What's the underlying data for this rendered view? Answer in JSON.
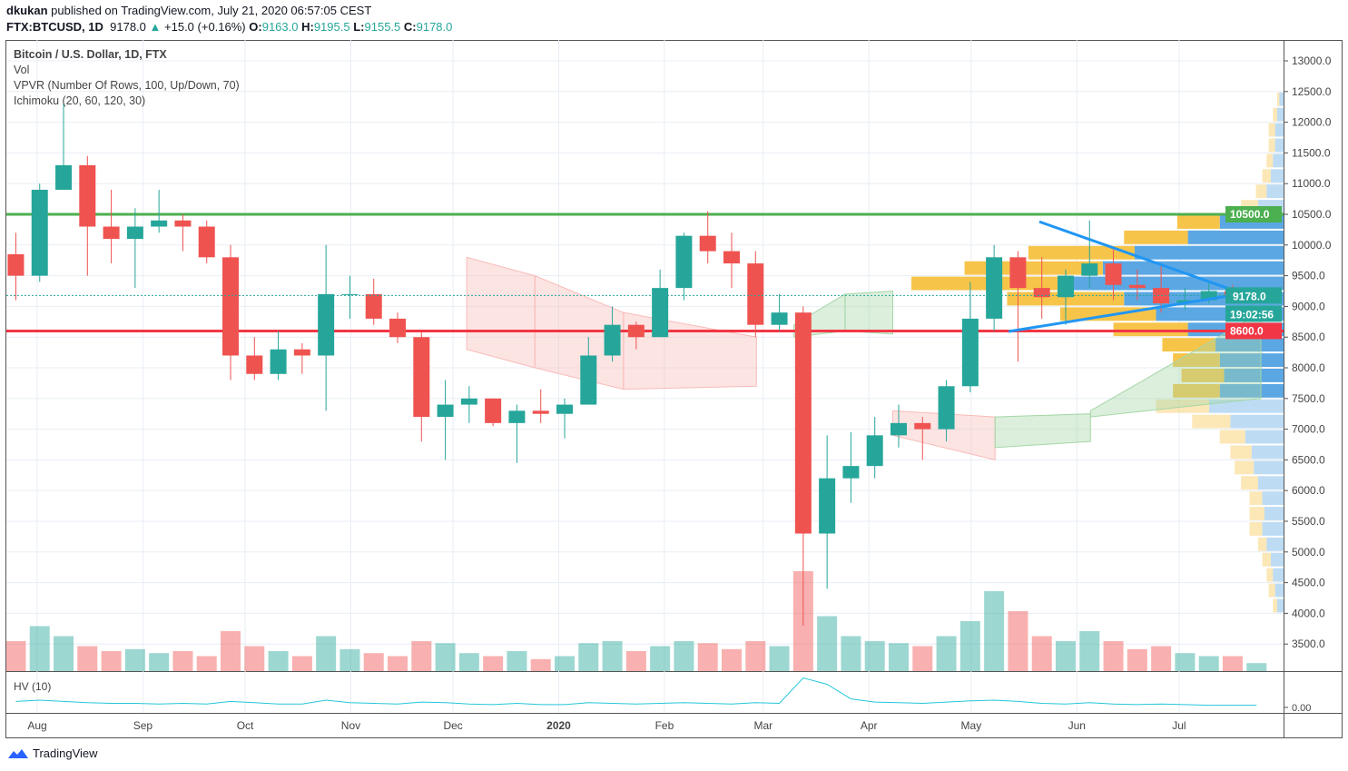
{
  "header": {
    "author": "dkukan",
    "published": "published on TradingView.com, July 21, 2020 06:57:05 CEST",
    "symbol": "FTX:BTCUSD, 1D",
    "last": "9178.0",
    "change": "+15.0 (+0.16%)",
    "o_label": "O:",
    "o": "9163.0",
    "h_label": "H:",
    "h": "9195.5",
    "l_label": "L:",
    "l": "9155.5",
    "c_label": "C:",
    "c": "9178.0"
  },
  "legend": [
    "Bitcoin / U.S. Dollar, 1D, FTX",
    "Vol",
    "VPVR (Number Of Rows, 100, Up/Down, 70)",
    "Ichimoku (20, 60, 120, 30)"
  ],
  "hv_label": "HV (10)",
  "footer": {
    "brand": "TradingView"
  },
  "colors": {
    "up": "#26a69a",
    "down": "#ef5350",
    "resistance": "#4caf50",
    "support": "#f23645",
    "trendline": "#2196f3",
    "vpvr_up": "#5aa7e3",
    "vpvr_down": "#f7c44a",
    "cloud_bull": "#a5d6a7",
    "cloud_bear": "#f8bbb8"
  },
  "chart_data": {
    "type": "candlestick",
    "ylim": [
      3100,
      13300
    ],
    "y_ticks": [
      "3500.0",
      "4000.0",
      "4500.0",
      "5000.0",
      "5500.0",
      "6000.0",
      "6500.0",
      "7000.0",
      "7500.0",
      "8000.0",
      "8500.0",
      "9000.0",
      "9500.0",
      "10000.0",
      "10500.0",
      "11000.0",
      "11500.0",
      "12000.0",
      "12500.0",
      "13000.0"
    ],
    "x_ticks": [
      {
        "date": "2019-08-01",
        "label": "Aug"
      },
      {
        "date": "2019-09-01",
        "label": "Sep"
      },
      {
        "date": "2019-10-01",
        "label": "Oct"
      },
      {
        "date": "2019-11-01",
        "label": "Nov"
      },
      {
        "date": "2019-12-01",
        "label": "Dec"
      },
      {
        "date": "2020-01-01",
        "label": "2020"
      },
      {
        "date": "2020-02-01",
        "label": "Feb"
      },
      {
        "date": "2020-03-01",
        "label": "Mar"
      },
      {
        "date": "2020-04-01",
        "label": "Apr"
      },
      {
        "date": "2020-05-01",
        "label": "May"
      },
      {
        "date": "2020-06-01",
        "label": "Jun"
      },
      {
        "date": "2020-07-01",
        "label": "Jul"
      }
    ],
    "candles": [
      [
        "2019-07-22",
        9850,
        10200,
        9100,
        9500
      ],
      [
        "2019-07-29",
        9500,
        11000,
        9400,
        10900
      ],
      [
        "2019-08-05",
        10900,
        12300,
        10900,
        11300
      ],
      [
        "2019-08-12",
        11300,
        11450,
        9500,
        10300
      ],
      [
        "2019-08-19",
        10300,
        10900,
        9700,
        10100
      ],
      [
        "2019-08-26",
        10100,
        10600,
        9300,
        10300
      ],
      [
        "2019-09-02",
        10300,
        10900,
        10200,
        10400
      ],
      [
        "2019-09-09",
        10400,
        10500,
        9900,
        10300
      ],
      [
        "2019-09-16",
        10300,
        10400,
        9700,
        9800
      ],
      [
        "2019-09-23",
        9800,
        10000,
        7800,
        8200
      ],
      [
        "2019-09-30",
        8200,
        8500,
        7800,
        7900
      ],
      [
        "2019-10-07",
        7900,
        8600,
        7800,
        8300
      ],
      [
        "2019-10-14",
        8300,
        8400,
        7900,
        8200
      ],
      [
        "2019-10-21",
        8200,
        10000,
        7300,
        9200
      ],
      [
        "2019-10-28",
        9200,
        9500,
        8800,
        9200
      ],
      [
        "2019-11-04",
        9200,
        9450,
        8700,
        8800
      ],
      [
        "2019-11-11",
        8800,
        8900,
        8400,
        8500
      ],
      [
        "2019-11-18",
        8500,
        8600,
        6800,
        7200
      ],
      [
        "2019-11-25",
        7200,
        7800,
        6500,
        7400
      ],
      [
        "2019-12-02",
        7400,
        7700,
        7100,
        7500
      ],
      [
        "2019-12-09",
        7500,
        7500,
        7050,
        7100
      ],
      [
        "2019-12-16",
        7100,
        7400,
        6450,
        7300
      ],
      [
        "2019-12-23",
        7300,
        7650,
        7100,
        7250
      ],
      [
        "2019-12-30",
        7250,
        7500,
        6850,
        7400
      ],
      [
        "2020-01-06",
        7400,
        8500,
        7400,
        8200
      ],
      [
        "2020-01-13",
        8200,
        9000,
        8100,
        8700
      ],
      [
        "2020-01-20",
        8700,
        8750,
        8300,
        8500
      ],
      [
        "2020-01-27",
        8500,
        9600,
        8500,
        9300
      ],
      [
        "2020-02-03",
        9300,
        10200,
        9100,
        10150
      ],
      [
        "2020-02-10",
        10150,
        10550,
        9700,
        9900
      ],
      [
        "2020-02-17",
        9900,
        10200,
        9300,
        9700
      ],
      [
        "2020-02-24",
        9700,
        9900,
        8500,
        8700
      ],
      [
        "2020-03-02",
        8700,
        9200,
        8600,
        8900
      ],
      [
        "2020-03-09",
        8900,
        9000,
        3800,
        5300
      ],
      [
        "2020-03-16",
        5300,
        6900,
        4400,
        6200
      ],
      [
        "2020-03-23",
        6200,
        6950,
        5800,
        6400
      ],
      [
        "2020-03-30",
        6400,
        7200,
        6200,
        6900
      ],
      [
        "2020-04-06",
        6900,
        7400,
        6700,
        7100
      ],
      [
        "2020-04-13",
        7100,
        7200,
        6500,
        7000
      ],
      [
        "2020-04-20",
        7000,
        7800,
        6800,
        7700
      ],
      [
        "2020-04-27",
        7700,
        9400,
        7600,
        8800
      ],
      [
        "2020-05-04",
        8800,
        10000,
        8600,
        9800
      ],
      [
        "2020-05-11",
        9800,
        9900,
        8100,
        9300
      ],
      [
        "2020-05-18",
        9300,
        9800,
        8800,
        9150
      ],
      [
        "2020-05-25",
        9150,
        9600,
        8700,
        9500
      ],
      [
        "2020-06-01",
        9500,
        10400,
        9300,
        9700
      ],
      [
        "2020-06-08",
        9700,
        9950,
        9100,
        9350
      ],
      [
        "2020-06-15",
        9350,
        9600,
        9100,
        9300
      ],
      [
        "2020-06-22",
        9300,
        9700,
        8900,
        9050
      ],
      [
        "2020-06-29",
        9050,
        9300,
        8950,
        9100
      ],
      [
        "2020-07-06",
        9100,
        9400,
        9050,
        9250
      ],
      [
        "2020-07-13",
        9250,
        9350,
        9100,
        9150
      ],
      [
        "2020-07-20",
        9150,
        9200,
        9150,
        9178
      ]
    ],
    "volume": [
      30,
      45,
      35,
      25,
      20,
      22,
      18,
      20,
      15,
      40,
      25,
      20,
      15,
      35,
      22,
      18,
      15,
      30,
      28,
      18,
      15,
      20,
      12,
      15,
      28,
      30,
      20,
      25,
      30,
      28,
      22,
      30,
      25,
      100,
      55,
      35,
      30,
      28,
      25,
      35,
      50,
      80,
      60,
      35,
      30,
      40,
      30,
      22,
      25,
      18,
      15,
      15,
      8
    ],
    "hv": [
      8,
      10,
      8,
      6,
      5,
      5,
      4,
      5,
      4,
      8,
      6,
      4,
      4,
      10,
      6,
      5,
      4,
      7,
      6,
      4,
      3,
      5,
      3,
      3,
      6,
      5,
      4,
      5,
      6,
      5,
      4,
      6,
      5,
      45,
      35,
      12,
      7,
      6,
      5,
      7,
      9,
      10,
      8,
      5,
      4,
      6,
      4,
      3,
      4,
      3,
      2,
      2,
      2
    ],
    "hv_tick": "0.00",
    "horizontal_lines": [
      {
        "price": 10500,
        "label": "10500.0",
        "color": "#4caf50"
      },
      {
        "price": 8600,
        "label": "8600.0",
        "color": "#f23645"
      }
    ],
    "last_price": {
      "price": 9178,
      "label": "9178.0",
      "countdown": "19:02:56"
    },
    "trendlines": [
      {
        "from": [
          "2020-05-21",
          10380
        ],
        "to": [
          "2020-07-21",
          9183
        ]
      },
      {
        "from": [
          "2020-05-12",
          8592
        ],
        "to": [
          "2020-07-22",
          9228
        ]
      }
    ],
    "ichimoku_cloud": [
      {
        "from": "2019-12-05",
        "to": "2019-12-25",
        "top": [
          9800,
          9500
        ],
        "bottom": [
          8300,
          8000
        ],
        "trend": "bearish"
      },
      {
        "from": "2019-12-25",
        "to": "2020-01-20",
        "top": [
          9500,
          8900
        ],
        "bottom": [
          8000,
          7650
        ],
        "trend": "bearish"
      },
      {
        "from": "2020-01-20",
        "to": "2020-02-28",
        "top": [
          8900,
          8500
        ],
        "bottom": [
          7650,
          7700
        ],
        "trend": "bearish"
      },
      {
        "from": "2020-03-10",
        "to": "2020-03-25",
        "top": [
          8700,
          9200
        ],
        "bottom": [
          8500,
          8600
        ],
        "trend": "bullish"
      },
      {
        "from": "2020-03-25",
        "to": "2020-04-08",
        "top": [
          9200,
          9250
        ],
        "bottom": [
          8600,
          8550
        ],
        "trend": "bullish"
      },
      {
        "from": "2020-04-08",
        "to": "2020-05-08",
        "top": [
          7300,
          7200
        ],
        "bottom": [
          6900,
          6500
        ],
        "trend": "bearish"
      },
      {
        "from": "2020-05-08",
        "to": "2020-06-05",
        "top": [
          7200,
          7250
        ],
        "bottom": [
          6700,
          6800
        ],
        "trend": "bullish"
      },
      {
        "from": "2020-06-05",
        "to": "2020-07-25",
        "top": [
          7300,
          8900
        ],
        "bottom": [
          7200,
          7500
        ],
        "trend": "bullish"
      }
    ],
    "vpvr": {
      "value_area": [
        7500,
        10500
      ],
      "rows": [
        [
          4000,
          3,
          2
        ],
        [
          4250,
          4,
          3
        ],
        [
          4500,
          5,
          3
        ],
        [
          4750,
          6,
          4
        ],
        [
          5000,
          8,
          4
        ],
        [
          5250,
          10,
          6
        ],
        [
          5500,
          9,
          7
        ],
        [
          5750,
          10,
          6
        ],
        [
          6000,
          12,
          8
        ],
        [
          6250,
          14,
          9
        ],
        [
          6500,
          15,
          10
        ],
        [
          6750,
          18,
          12
        ],
        [
          7000,
          25,
          18
        ],
        [
          7250,
          35,
          25
        ],
        [
          7500,
          30,
          22
        ],
        [
          7750,
          28,
          20
        ],
        [
          8000,
          30,
          22
        ],
        [
          8250,
          32,
          25
        ],
        [
          8500,
          45,
          35
        ],
        [
          8750,
          60,
          45
        ],
        [
          9000,
          75,
          55
        ],
        [
          9250,
          100,
          75
        ],
        [
          9500,
          85,
          65
        ],
        [
          9750,
          70,
          50
        ],
        [
          10000,
          45,
          30
        ],
        [
          10250,
          30,
          20
        ],
        [
          10500,
          12,
          8
        ],
        [
          10750,
          8,
          5
        ],
        [
          11000,
          6,
          4
        ],
        [
          11250,
          5,
          3
        ],
        [
          11500,
          4,
          3
        ],
        [
          11750,
          4,
          3
        ],
        [
          12000,
          3,
          2
        ],
        [
          12250,
          2,
          1
        ]
      ]
    }
  }
}
